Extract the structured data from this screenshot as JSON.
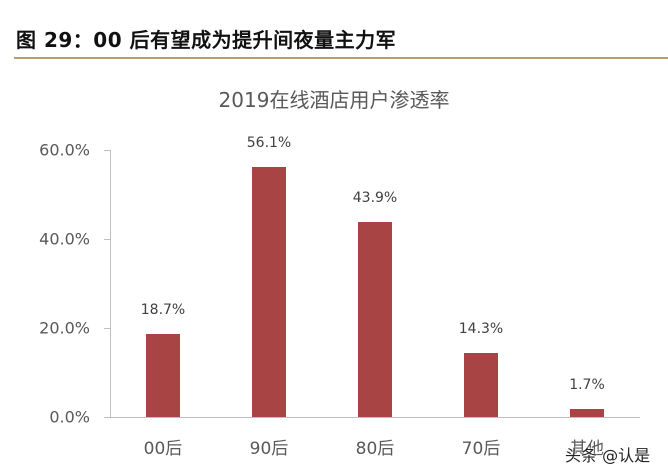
{
  "figure": {
    "title": "图 29：00 后有望成为提升间夜量主力军",
    "rule_color": "#B5A06A"
  },
  "watermark": "头条 @认是",
  "chart_data": {
    "type": "bar",
    "title": "2019在线酒店用户渗透率",
    "categories": [
      "00后",
      "90后",
      "80后",
      "70后",
      "其他"
    ],
    "values": [
      18.7,
      56.1,
      43.9,
      14.3,
      1.7
    ],
    "value_labels": [
      "18.7%",
      "56.1%",
      "43.9%",
      "14.3%",
      "1.7%"
    ],
    "xlabel": "",
    "ylabel": "",
    "ylim": [
      0,
      60
    ],
    "yticks": [
      0,
      20,
      40,
      60
    ],
    "ytick_labels": [
      "0.0%",
      "20.0%",
      "40.0%",
      "60.0%"
    ],
    "grid": false,
    "legend": null,
    "bar_color": "#A84444"
  }
}
